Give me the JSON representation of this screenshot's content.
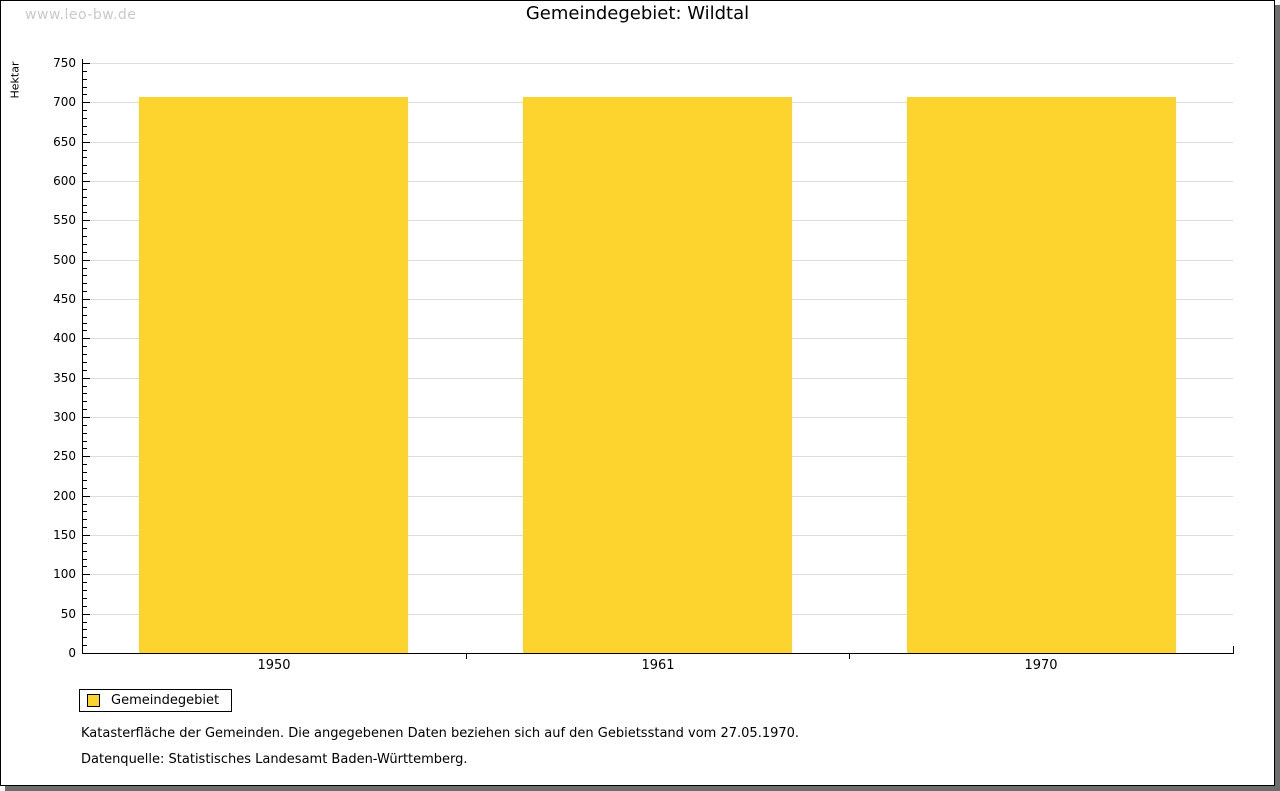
{
  "watermark": "www.leo-bw.de",
  "chart_data": {
    "type": "bar",
    "title": "Gemeindegebiet: Wildtal",
    "categories": [
      "1950",
      "1961",
      "1970"
    ],
    "series": [
      {
        "name": "Gemeindegebiet",
        "values": [
          707,
          707,
          707
        ]
      }
    ],
    "xlabel": "",
    "ylabel": "Hektar",
    "ylim": [
      0,
      750
    ],
    "ytick_step": 50,
    "yminor_step": 10,
    "grid": "horizontal major gridlines",
    "legend_position": "bottom-left outside",
    "bar_color": "#fcd42d",
    "grid_color": "#dcdcdc",
    "axis_color": "#000000"
  },
  "legend": {
    "items": [
      {
        "label": "Gemeindegebiet",
        "color": "#fcd42d"
      }
    ]
  },
  "footnotes": [
    "Katasterfläche der Gemeinden. Die angegebenen Daten beziehen sich auf den Gebietsstand vom 27.05.1970.",
    "Datenquelle: Statistisches Landesamt Baden-Württemberg."
  ],
  "colors": {
    "watermark": "#c9c9c9",
    "frame_shadow": "#6e6e6e",
    "background": "#ffffff"
  }
}
